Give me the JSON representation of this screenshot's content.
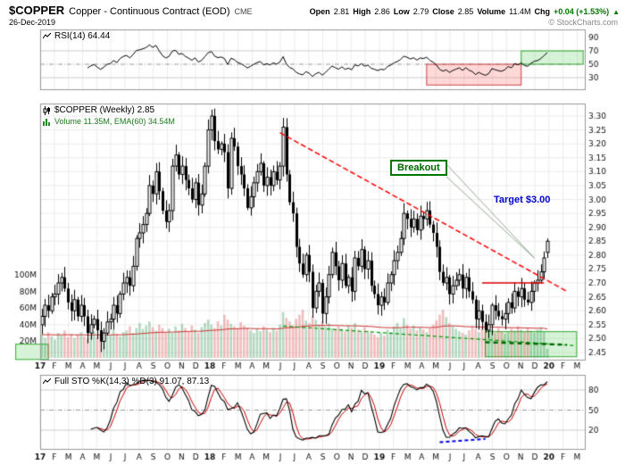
{
  "header": {
    "symbol": "$COPPER",
    "name": "Copper - Continuous Contract (EOD)",
    "exchange": "CME",
    "date": "26-Dec-2019",
    "watermark": "© StockCharts.com",
    "quote": {
      "open_label": "Open",
      "open_value": "2.81",
      "high_label": "High",
      "high_value": "2.86",
      "low_label": "Low",
      "low_value": "2.79",
      "close_label": "Close",
      "close_value": "2.85",
      "volume_label": "Volume",
      "volume_value": "11.4M",
      "chg_label": "Chg",
      "chg_value": "+0.04 (+1.53%)",
      "up_arrow": "▲"
    }
  },
  "panels": {
    "rsi": {
      "legend": "RSI(14) 64.44",
      "yticks": [
        "90",
        "70",
        "50",
        "30"
      ]
    },
    "price": {
      "legend_symbol": "$COPPER (Weekly) 2.85",
      "legend_volume": "Volume 11.35M, EMA(60) 34.54M",
      "yticks_right": [
        "3.30",
        "3.25",
        "3.20",
        "3.15",
        "3.10",
        "3.05",
        "3.00",
        "2.95",
        "2.90",
        "2.85",
        "2.80",
        "2.75",
        "2.70",
        "2.65",
        "2.60",
        "2.55",
        "2.50",
        "2.45"
      ],
      "yticks_volume": [
        "100M",
        "80M",
        "60M",
        "40M",
        "20M"
      ]
    },
    "stoch": {
      "legend": "Full STO %K(14,3) %D(3) 91.07, 87.13",
      "yticks": [
        "80",
        "50",
        "20"
      ]
    }
  },
  "xaxis": {
    "labels": [
      "17",
      "F",
      "M",
      "A",
      "M",
      "J",
      "J",
      "A",
      "S",
      "O",
      "N",
      "D",
      "18",
      "F",
      "M",
      "A",
      "M",
      "J",
      "J",
      "A",
      "S",
      "O",
      "N",
      "D",
      "19",
      "F",
      "M",
      "A",
      "M",
      "J",
      "J",
      "A",
      "S",
      "O",
      "N",
      "D",
      "20",
      "F",
      "M"
    ],
    "year_indices": [
      0,
      12,
      24,
      36
    ]
  },
  "annotations": {
    "breakout_label": "Breakout",
    "target_label": "Target $3.00",
    "downtrend_line": {
      "from_week": 73,
      "from_price": 3.24,
      "to_week": 161,
      "to_price": 2.67,
      "color": "#ff0000",
      "style": "dashed"
    },
    "resistance_line": {
      "from_week": 135,
      "to_week": 154,
      "price": 2.7,
      "color": "#dd0000"
    },
    "support_trend": {
      "from_week": 74,
      "from_price": 2.545,
      "to_week": 163,
      "to_price": 2.475,
      "color": "#009900",
      "style": "dashed"
    },
    "support_base": {
      "from_week": 136,
      "from_price": 2.487,
      "to_week": 161,
      "to_price": 2.478,
      "color": "#006600",
      "style": "dashed-bold"
    },
    "price_green_box": {
      "from_week": 136,
      "to_week": 164,
      "from_price": 2.435,
      "to_price": 2.525
    },
    "left_green_box": {
      "from_week": -8,
      "to_week": 2,
      "from_price": 2.425,
      "to_price": 2.48
    },
    "rsi_red_box": {
      "from_week": 118,
      "to_week": 147,
      "from_val": 19,
      "to_val": 50
    },
    "rsi_green_box": {
      "from_week": 147,
      "to_week": 166,
      "from_val": 50,
      "to_val": 70
    },
    "stoch_blue_line": {
      "from_week": 122,
      "from_val": 2,
      "to_week": 136,
      "to_val": 7,
      "color": "#0000ee"
    },
    "breakout_pointer": {
      "to_week": 151,
      "to_price": 2.79
    }
  },
  "chart_data": {
    "type": "candlestick+volume",
    "timeframe": "weekly",
    "start": "Jan 2017",
    "end": "26-Dec-2019",
    "price_axis": {
      "min": 2.45,
      "max": 3.3,
      "step": 0.05
    },
    "volume_axis_millions": {
      "min": 0,
      "max": 100,
      "step": 20
    },
    "indicators": {
      "rsi": "RSI(14)",
      "rsi_last": 64.44,
      "stoch": "Full STO %K(14,3) %D(3)",
      "stoch_last_k": 91.07,
      "stoch_last_d": 87.13,
      "volume_ema": "EMA(60)",
      "volume_ema_last_millions": 34.54
    },
    "first_open": 2.55,
    "last_ohlc": [
      2.81,
      2.86,
      2.79,
      2.85
    ],
    "closes": [
      2.58,
      2.62,
      2.6,
      2.65,
      2.66,
      2.7,
      2.72,
      2.68,
      2.63,
      2.6,
      2.64,
      2.58,
      2.62,
      2.58,
      2.52,
      2.55,
      2.57,
      2.53,
      2.49,
      2.52,
      2.56,
      2.57,
      2.62,
      2.59,
      2.66,
      2.7,
      2.72,
      2.69,
      2.76,
      2.86,
      2.88,
      2.91,
      2.95,
      3.05,
      3.02,
      3.1,
      3.03,
      2.96,
      2.92,
      2.96,
      3.12,
      3.16,
      3.09,
      3.12,
      3.07,
      3.04,
      3.0,
      3.06,
      2.98,
      3.02,
      3.12,
      3.25,
      3.3,
      3.21,
      3.18,
      3.2,
      3.17,
      3.04,
      3.22,
      3.19,
      3.12,
      3.09,
      3.04,
      2.97,
      3.01,
      3.06,
      3.1,
      3.13,
      3.05,
      3.08,
      3.05,
      3.1,
      3.07,
      3.12,
      3.26,
      3.09,
      2.99,
      2.95,
      2.83,
      2.77,
      2.73,
      2.8,
      2.74,
      2.61,
      2.67,
      2.7,
      2.59,
      2.65,
      2.73,
      2.81,
      2.76,
      2.71,
      2.77,
      2.69,
      2.72,
      2.67,
      2.79,
      2.76,
      2.82,
      2.75,
      2.78,
      2.69,
      2.66,
      2.62,
      2.65,
      2.63,
      2.7,
      2.73,
      2.78,
      2.81,
      2.86,
      2.95,
      2.93,
      2.9,
      2.93,
      2.89,
      2.94,
      2.93,
      2.96,
      2.91,
      2.88,
      2.83,
      2.74,
      2.7,
      2.72,
      2.66,
      2.69,
      2.71,
      2.73,
      2.68,
      2.72,
      2.67,
      2.64,
      2.57,
      2.6,
      2.56,
      2.53,
      2.55,
      2.62,
      2.6,
      2.58,
      2.57,
      2.59,
      2.63,
      2.61,
      2.67,
      2.65,
      2.68,
      2.64,
      2.63,
      2.67,
      2.7,
      2.71,
      2.74,
      2.79,
      2.85
    ],
    "volumes_millions": [
      28,
      24,
      31,
      26,
      22,
      30,
      27,
      33,
      25,
      29,
      24,
      28,
      31,
      26,
      23,
      27,
      32,
      25,
      28,
      24,
      30,
      27,
      34,
      29,
      26,
      31,
      33,
      38,
      30,
      36,
      42,
      35,
      39,
      44,
      37,
      33,
      40,
      36,
      31,
      35,
      30,
      38,
      33,
      41,
      36,
      32,
      39,
      34,
      30,
      37,
      42,
      46,
      40,
      36,
      44,
      39,
      52,
      46,
      41,
      38,
      35,
      43,
      39,
      36,
      33,
      30,
      35,
      32,
      38,
      34,
      31,
      36,
      33,
      40,
      55,
      48,
      44,
      39,
      47,
      52,
      58,
      45,
      42,
      50,
      46,
      40,
      44,
      38,
      42,
      36,
      34,
      38,
      35,
      32,
      39,
      36,
      42,
      34,
      31,
      37,
      33,
      30,
      28,
      25,
      30,
      27,
      34,
      31,
      38,
      42,
      36,
      48,
      40,
      35,
      39,
      33,
      37,
      34,
      31,
      36,
      40,
      45,
      52,
      58,
      49,
      42,
      38,
      35,
      32,
      30,
      28,
      33,
      38,
      35,
      31,
      36,
      42,
      39,
      34,
      30,
      36,
      32,
      29,
      31,
      35,
      33,
      38,
      34,
      31,
      36,
      33,
      30,
      34,
      37,
      32,
      11
    ]
  }
}
